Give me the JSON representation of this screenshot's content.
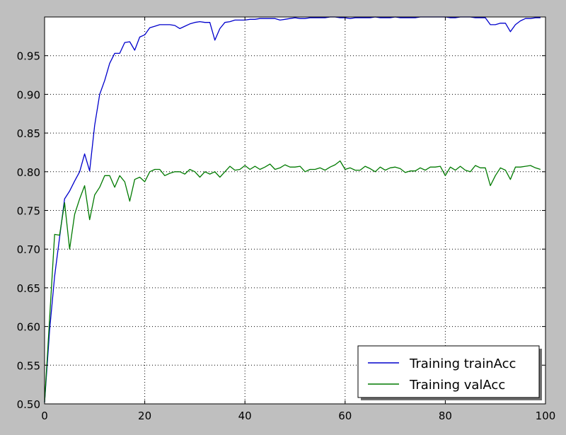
{
  "chart_data": {
    "type": "line",
    "title": "",
    "xlabel": "",
    "ylabel": "",
    "xlim": [
      0,
      100
    ],
    "ylim": [
      0.5,
      1.0
    ],
    "xticks": [
      0,
      20,
      40,
      60,
      80,
      100
    ],
    "yticks": [
      0.5,
      0.55,
      0.6,
      0.65,
      0.7,
      0.75,
      0.8,
      0.85,
      0.9,
      0.95
    ],
    "ytick_labels": [
      "0.50",
      "0.55",
      "0.60",
      "0.65",
      "0.70",
      "0.75",
      "0.80",
      "0.85",
      "0.90",
      "0.95"
    ],
    "xtick_labels": [
      "0",
      "20",
      "40",
      "60",
      "80",
      "100"
    ],
    "grid": true,
    "legend_position": "bottom-right",
    "series": [
      {
        "name": "Training trainAcc",
        "color": "#0000cc",
        "x": [
          0,
          1,
          2,
          3,
          4,
          5,
          6,
          7,
          8,
          9,
          10,
          11,
          12,
          13,
          14,
          15,
          16,
          17,
          18,
          19,
          20,
          21,
          22,
          23,
          24,
          25,
          26,
          27,
          28,
          29,
          30,
          31,
          32,
          33,
          34,
          35,
          36,
          37,
          38,
          39,
          40,
          41,
          42,
          43,
          44,
          45,
          46,
          47,
          48,
          49,
          50,
          51,
          52,
          53,
          54,
          55,
          56,
          57,
          58,
          59,
          60,
          61,
          62,
          63,
          64,
          65,
          66,
          67,
          68,
          69,
          70,
          71,
          72,
          73,
          74,
          75,
          76,
          77,
          78,
          79,
          80,
          81,
          82,
          83,
          84,
          85,
          86,
          87,
          88,
          89,
          90,
          91,
          92,
          93,
          94,
          95,
          96,
          97,
          98,
          99
        ],
        "values": [
          0.502,
          0.595,
          0.665,
          0.715,
          0.765,
          0.775,
          0.788,
          0.8,
          0.823,
          0.801,
          0.86,
          0.9,
          0.918,
          0.94,
          0.953,
          0.953,
          0.967,
          0.968,
          0.957,
          0.974,
          0.977,
          0.986,
          0.988,
          0.99,
          0.99,
          0.99,
          0.989,
          0.985,
          0.988,
          0.991,
          0.993,
          0.994,
          0.993,
          0.993,
          0.97,
          0.985,
          0.993,
          0.994,
          0.996,
          0.996,
          0.996,
          0.997,
          0.997,
          0.998,
          0.998,
          0.998,
          0.998,
          0.996,
          0.997,
          0.998,
          0.999,
          0.998,
          0.998,
          0.999,
          0.999,
          0.999,
          0.999,
          1.0,
          1.0,
          0.999,
          0.999,
          0.998,
          0.999,
          0.999,
          0.999,
          0.999,
          1.0,
          0.999,
          0.999,
          0.999,
          1.0,
          0.999,
          0.999,
          0.999,
          0.999,
          1.0,
          1.0,
          1.0,
          1.0,
          1.0,
          1.0,
          0.999,
          0.999,
          1.0,
          1.0,
          1.0,
          0.999,
          0.999,
          0.999,
          0.99,
          0.99,
          0.992,
          0.992,
          0.981,
          0.99,
          0.995,
          0.998,
          0.998,
          0.999,
          0.999
        ]
      },
      {
        "name": "Training valAcc",
        "color": "#007a00",
        "x": [
          0,
          1,
          2,
          3,
          4,
          5,
          6,
          7,
          8,
          9,
          10,
          11,
          12,
          13,
          14,
          15,
          16,
          17,
          18,
          19,
          20,
          21,
          22,
          23,
          24,
          25,
          26,
          27,
          28,
          29,
          30,
          31,
          32,
          33,
          34,
          35,
          36,
          37,
          38,
          39,
          40,
          41,
          42,
          43,
          44,
          45,
          46,
          47,
          48,
          49,
          50,
          51,
          52,
          53,
          54,
          55,
          56,
          57,
          58,
          59,
          60,
          61,
          62,
          63,
          64,
          65,
          66,
          67,
          68,
          69,
          70,
          71,
          72,
          73,
          74,
          75,
          76,
          77,
          78,
          79,
          80,
          81,
          82,
          83,
          84,
          85,
          86,
          87,
          88,
          89,
          90,
          91,
          92,
          93,
          94,
          95,
          96,
          97,
          98,
          99
        ],
        "values": [
          0.502,
          0.61,
          0.719,
          0.718,
          0.76,
          0.7,
          0.745,
          0.765,
          0.782,
          0.738,
          0.77,
          0.78,
          0.795,
          0.795,
          0.78,
          0.795,
          0.787,
          0.762,
          0.79,
          0.793,
          0.787,
          0.8,
          0.803,
          0.803,
          0.795,
          0.798,
          0.8,
          0.8,
          0.797,
          0.803,
          0.8,
          0.793,
          0.8,
          0.797,
          0.8,
          0.793,
          0.8,
          0.807,
          0.802,
          0.803,
          0.808,
          0.803,
          0.807,
          0.803,
          0.806,
          0.81,
          0.803,
          0.805,
          0.809,
          0.806,
          0.806,
          0.807,
          0.8,
          0.803,
          0.803,
          0.805,
          0.802,
          0.806,
          0.809,
          0.814,
          0.803,
          0.805,
          0.802,
          0.802,
          0.807,
          0.804,
          0.8,
          0.806,
          0.802,
          0.805,
          0.806,
          0.804,
          0.799,
          0.801,
          0.801,
          0.805,
          0.802,
          0.806,
          0.806,
          0.807,
          0.795,
          0.806,
          0.802,
          0.807,
          0.802,
          0.8,
          0.808,
          0.805,
          0.805,
          0.782,
          0.795,
          0.805,
          0.802,
          0.79,
          0.806,
          0.806,
          0.807,
          0.808,
          0.805,
          0.803
        ]
      }
    ]
  }
}
